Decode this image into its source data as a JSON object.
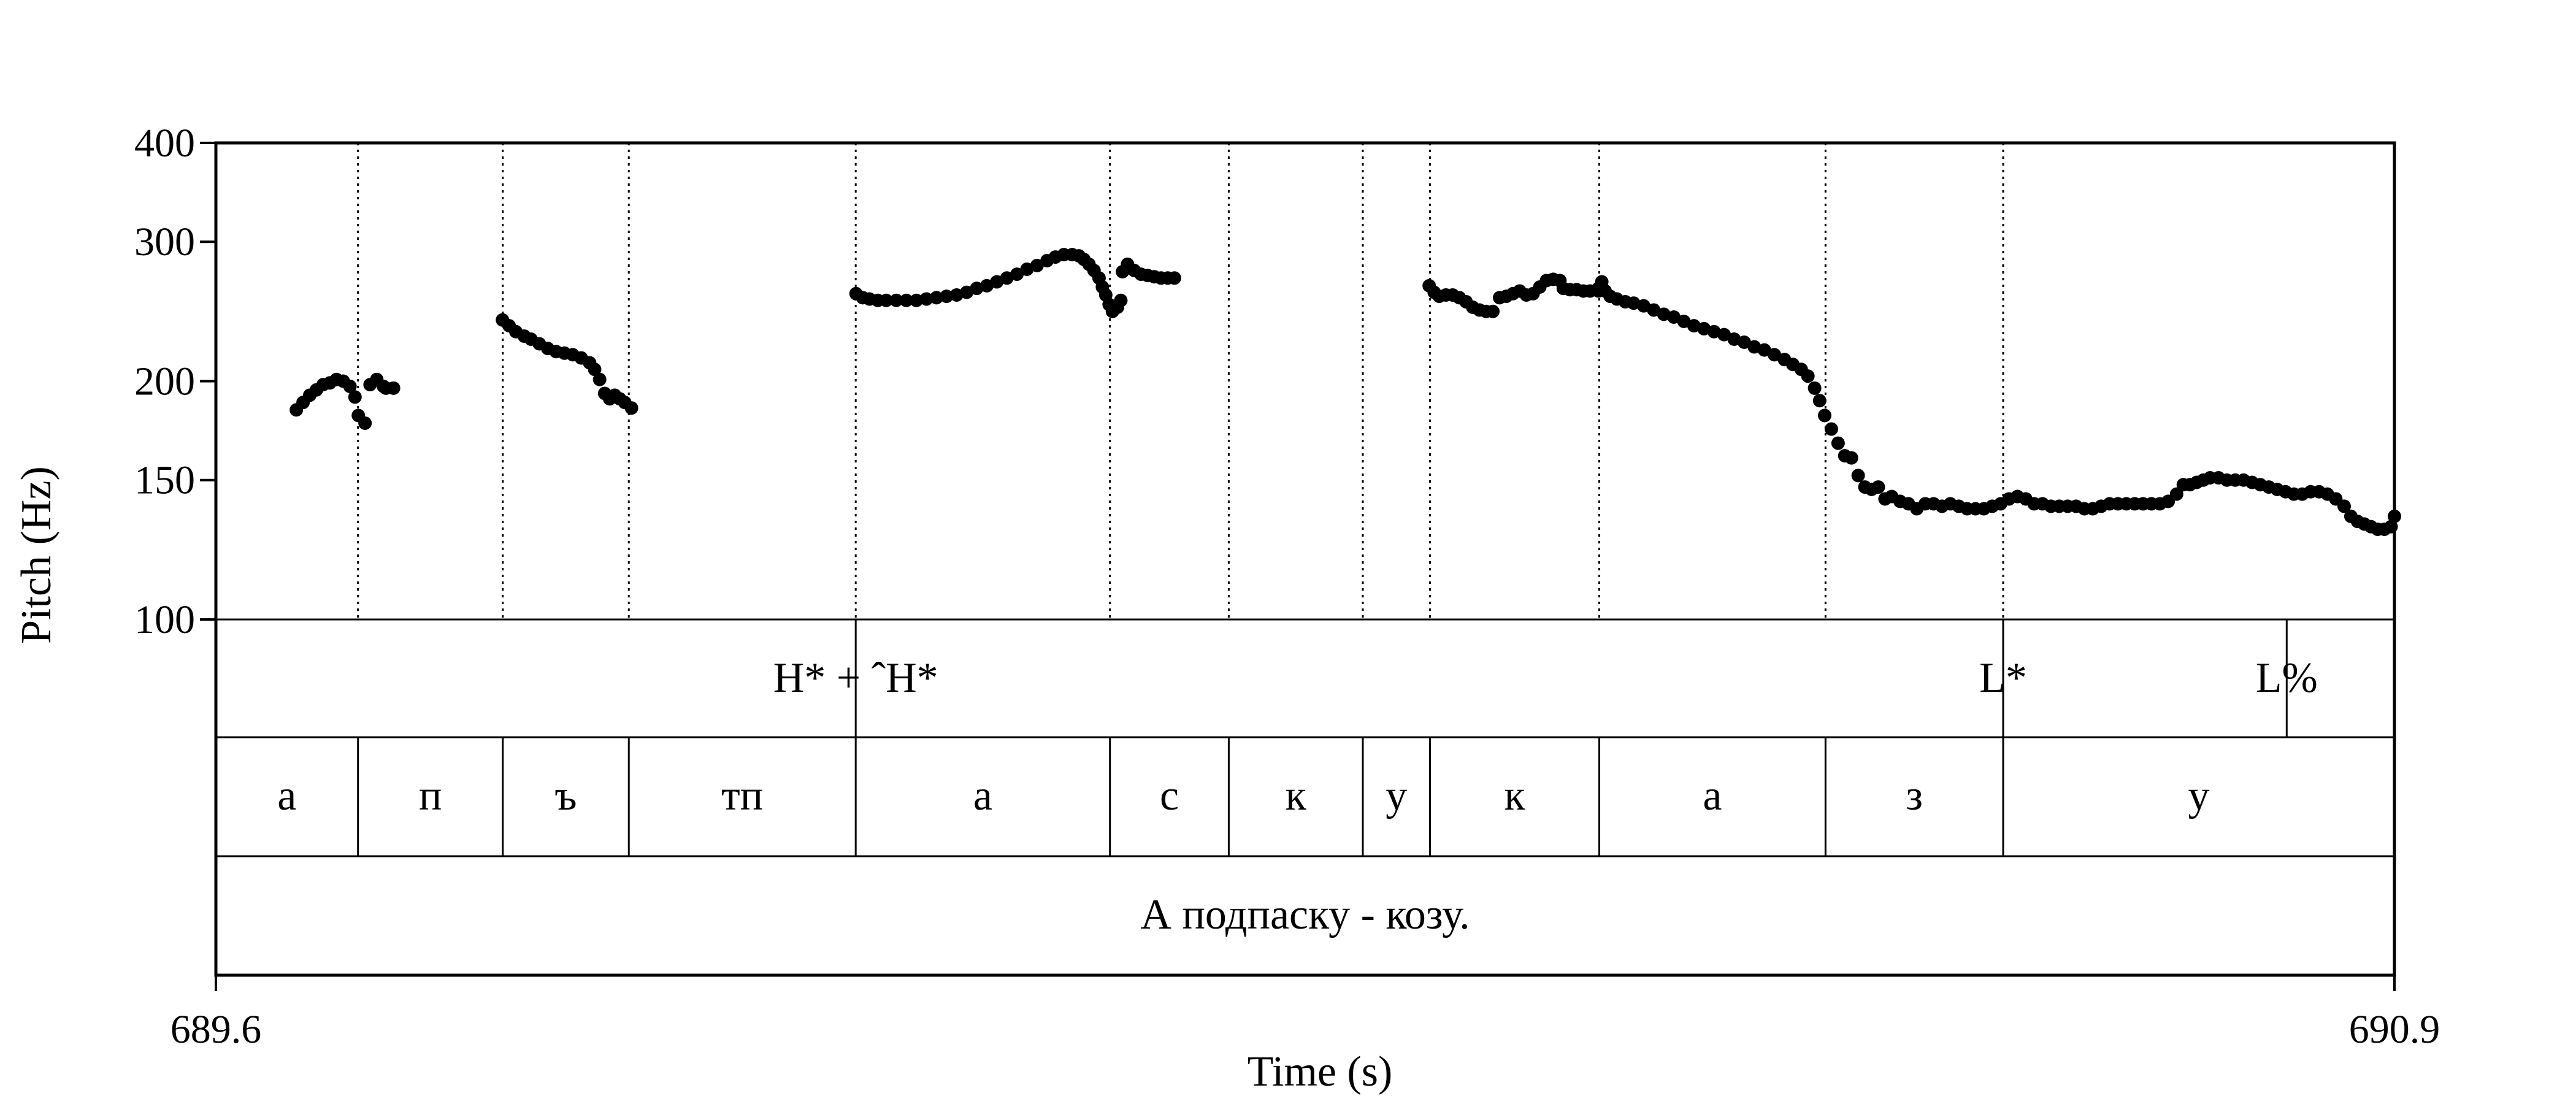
{
  "chart_data": {
    "type": "scatter",
    "xlabel": "Time (s)",
    "ylabel": "Pitch (Hz)",
    "xlim": [
      689.6,
      690.9
    ],
    "ylim": [
      100,
      400
    ],
    "y_scale": "log",
    "x_tick_labels": [
      "689.6",
      "690.9"
    ],
    "y_ticks": [
      100,
      150,
      200,
      300,
      400
    ],
    "y_tick_labels": [
      "100",
      "150",
      "200",
      "300",
      "400"
    ],
    "grid": false,
    "segment_boundaries": [
      689.6848,
      689.7712,
      689.8464,
      689.9818,
      690.1335,
      690.2044,
      690.2844,
      690.3245,
      690.4255,
      690.5605,
      690.6665
    ],
    "tones": [
      {
        "label": "H* + ˆH*",
        "time": 689.9818
      },
      {
        "label": "L*",
        "time": 690.6665
      },
      {
        "label": "L%",
        "time": 690.8357
      }
    ],
    "segments": [
      "а",
      "п",
      "ъ",
      "тп",
      "а",
      "с",
      "к",
      "у",
      "к",
      "а",
      "з",
      "у"
    ],
    "sentence": "А подпаску - козу.",
    "series": [
      {
        "points": [
          [
            689.648,
            184
          ],
          [
            689.652,
            188
          ],
          [
            689.656,
            192
          ],
          [
            689.66,
            195
          ],
          [
            689.664,
            198
          ],
          [
            689.668,
            199
          ],
          [
            689.672,
            201
          ],
          [
            689.676,
            200
          ],
          [
            689.68,
            197
          ],
          [
            689.683,
            191
          ],
          [
            689.685,
            181
          ],
          [
            689.689,
            177
          ],
          [
            689.692,
            198
          ],
          [
            689.696,
            201
          ],
          [
            689.7,
            197
          ],
          [
            689.706,
            196
          ],
          [
            689.7015,
            196
          ],
          [
            689.771,
            239
          ],
          [
            689.775,
            235
          ],
          [
            689.779,
            231
          ],
          [
            689.784,
            228
          ],
          [
            689.788,
            226
          ],
          [
            689.793,
            223
          ],
          [
            689.798,
            220
          ],
          [
            689.803,
            218
          ],
          [
            689.808,
            217
          ],
          [
            689.813,
            216
          ],
          [
            689.818,
            214
          ],
          [
            689.823,
            211
          ],
          [
            689.826,
            207
          ],
          [
            689.829,
            201
          ],
          [
            689.832,
            193
          ],
          [
            689.835,
            190
          ],
          [
            689.838,
            192
          ],
          [
            689.841,
            190
          ],
          [
            689.844,
            188
          ],
          [
            689.848,
            185
          ],
          [
            689.982,
            258
          ],
          [
            689.986,
            255
          ],
          [
            689.99,
            254
          ],
          [
            689.995,
            253
          ],
          [
            690.0,
            253
          ],
          [
            690.006,
            253
          ],
          [
            690.012,
            253
          ],
          [
            690.018,
            253
          ],
          [
            690.024,
            254
          ],
          [
            690.03,
            255
          ],
          [
            690.036,
            256
          ],
          [
            690.042,
            257
          ],
          [
            690.048,
            259
          ],
          [
            690.054,
            262
          ],
          [
            690.06,
            264
          ],
          [
            690.066,
            267
          ],
          [
            690.072,
            270
          ],
          [
            690.078,
            273
          ],
          [
            690.084,
            277
          ],
          [
            690.09,
            280
          ],
          [
            690.096,
            284
          ],
          [
            690.101,
            287
          ],
          [
            690.106,
            289
          ],
          [
            690.111,
            289
          ],
          [
            690.115,
            288
          ],
          [
            690.118,
            285
          ],
          [
            690.121,
            281
          ],
          [
            690.124,
            276
          ],
          [
            690.127,
            270
          ],
          [
            690.129,
            263
          ],
          [
            690.131,
            257
          ],
          [
            690.133,
            250
          ],
          [
            690.135,
            245
          ],
          [
            690.138,
            248
          ],
          [
            690.14,
            253
          ],
          [
            690.141,
            275
          ],
          [
            690.144,
            281
          ],
          [
            690.148,
            276
          ],
          [
            690.152,
            273
          ],
          [
            690.156,
            272
          ],
          [
            690.16,
            271
          ],
          [
            690.164,
            270
          ],
          [
            690.168,
            270
          ],
          [
            690.172,
            270
          ],
          [
            690.324,
            264
          ],
          [
            690.327,
            259
          ],
          [
            690.33,
            256
          ],
          [
            690.334,
            257
          ],
          [
            690.338,
            257
          ],
          [
            690.342,
            255
          ],
          [
            690.346,
            252
          ],
          [
            690.35,
            248
          ],
          [
            690.354,
            246
          ],
          [
            690.358,
            245
          ],
          [
            690.362,
            245
          ],
          [
            690.366,
            255
          ],
          [
            690.37,
            256
          ],
          [
            690.374,
            258
          ],
          [
            690.378,
            260
          ],
          [
            690.382,
            257
          ],
          [
            690.386,
            258
          ],
          [
            690.39,
            263
          ],
          [
            690.394,
            268
          ],
          [
            690.398,
            269
          ],
          [
            690.402,
            268
          ],
          [
            690.404,
            262
          ],
          [
            690.408,
            261
          ],
          [
            690.412,
            261
          ],
          [
            690.416,
            260
          ],
          [
            690.42,
            260
          ],
          [
            690.425,
            260
          ],
          [
            690.425,
            262
          ],
          [
            690.427,
            267
          ],
          [
            690.429,
            260
          ],
          [
            690.432,
            256
          ],
          [
            690.436,
            254
          ],
          [
            690.441,
            252
          ],
          [
            690.446,
            251
          ],
          [
            690.452,
            249
          ],
          [
            690.458,
            246
          ],
          [
            690.464,
            243
          ],
          [
            690.47,
            241
          ],
          [
            690.476,
            238
          ],
          [
            690.482,
            235
          ],
          [
            690.488,
            233
          ],
          [
            690.494,
            231
          ],
          [
            690.5,
            229
          ],
          [
            690.506,
            226
          ],
          [
            690.512,
            224
          ],
          [
            690.518,
            221
          ],
          [
            690.524,
            219
          ],
          [
            690.53,
            216
          ],
          [
            690.536,
            213
          ],
          [
            690.541,
            210
          ],
          [
            690.546,
            207
          ],
          [
            690.55,
            203
          ],
          [
            690.554,
            196
          ],
          [
            690.557,
            189
          ],
          [
            690.56,
            181
          ],
          [
            690.564,
            174
          ],
          [
            690.568,
            167
          ],
          [
            690.572,
            161
          ],
          [
            690.576,
            160
          ],
          [
            690.58,
            152
          ],
          [
            690.584,
            147
          ],
          [
            690.588,
            146
          ],
          [
            690.592,
            147
          ],
          [
            690.596,
            142
          ],
          [
            690.6,
            143
          ],
          [
            690.605,
            141
          ],
          [
            690.61,
            140
          ],
          [
            690.615,
            138
          ],
          [
            690.62,
            140
          ],
          [
            690.625,
            140
          ],
          [
            690.63,
            139
          ],
          [
            690.635,
            140
          ],
          [
            690.64,
            139
          ],
          [
            690.645,
            138
          ],
          [
            690.65,
            138
          ],
          [
            690.655,
            138
          ],
          [
            690.66,
            139
          ],
          [
            690.665,
            140
          ],
          [
            690.67,
            142
          ],
          [
            690.675,
            143
          ],
          [
            690.68,
            142
          ],
          [
            690.685,
            140
          ],
          [
            690.69,
            140
          ],
          [
            690.695,
            139
          ],
          [
            690.7,
            139
          ],
          [
            690.705,
            139
          ],
          [
            690.71,
            139
          ],
          [
            690.715,
            138
          ],
          [
            690.72,
            138
          ],
          [
            690.725,
            139
          ],
          [
            690.73,
            140
          ],
          [
            690.735,
            140
          ],
          [
            690.74,
            140
          ],
          [
            690.745,
            140
          ],
          [
            690.75,
            140
          ],
          [
            690.755,
            140
          ],
          [
            690.76,
            140
          ],
          [
            690.765,
            141
          ],
          [
            690.77,
            144
          ],
          [
            690.774,
            148
          ],
          [
            690.778,
            148
          ],
          [
            690.782,
            149
          ],
          [
            690.786,
            150
          ],
          [
            690.79,
            151
          ],
          [
            690.795,
            151
          ],
          [
            690.8,
            150
          ],
          [
            690.805,
            150
          ],
          [
            690.81,
            150
          ],
          [
            690.815,
            149
          ],
          [
            690.82,
            148
          ],
          [
            690.825,
            147
          ],
          [
            690.83,
            146
          ],
          [
            690.835,
            145
          ],
          [
            690.84,
            144
          ],
          [
            690.845,
            144
          ],
          [
            690.85,
            145
          ],
          [
            690.855,
            145
          ],
          [
            690.86,
            144
          ],
          [
            690.865,
            142
          ],
          [
            690.87,
            139
          ],
          [
            690.874,
            135
          ],
          [
            690.878,
            133
          ],
          [
            690.882,
            132
          ],
          [
            690.886,
            131
          ],
          [
            690.89,
            130
          ],
          [
            690.894,
            130
          ],
          [
            690.898,
            131
          ],
          [
            690.9,
            135
          ]
        ]
      }
    ]
  }
}
